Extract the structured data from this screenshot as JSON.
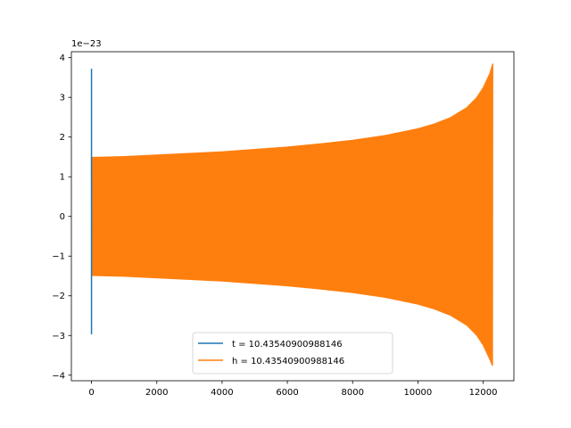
{
  "chart_data": {
    "type": "line",
    "title": "",
    "xlabel": "",
    "ylabel": "",
    "y_offset_label": "1e−23",
    "xlim": [
      -617,
      12942
    ],
    "ylim": [
      -4.14,
      4.15
    ],
    "xticks": [
      0,
      2000,
      4000,
      6000,
      8000,
      10000,
      12000
    ],
    "xtick_labels": [
      "0",
      "2000",
      "4000",
      "6000",
      "8000",
      "10000",
      "12000"
    ],
    "yticks": [
      -4,
      -3,
      -2,
      -1,
      0,
      1,
      2,
      3,
      4
    ],
    "ytick_labels": [
      "−4",
      "−3",
      "−2",
      "−1",
      "0",
      "1",
      "2",
      "3",
      "4"
    ],
    "grid": false,
    "legend_position": "lower center",
    "series": [
      {
        "name": "t = 10.43540900988146",
        "color": "#1f77b4",
        "description_points": {
          "x": [
            0,
            0,
            0,
            0,
            0
          ],
          "y": [
            3.72,
            -2.97,
            1.5,
            -1.5,
            -0.35
          ]
        }
      },
      {
        "name": "h = 10.43540900988146",
        "color": "#ff7f0e",
        "envelope": {
          "x": [
            0,
            1000,
            2000,
            3000,
            4000,
            5000,
            6000,
            7000,
            8000,
            9000,
            10000,
            10500,
            11000,
            11500,
            11800,
            12000,
            12200,
            12290
          ],
          "upper": [
            1.5,
            1.52,
            1.56,
            1.6,
            1.64,
            1.7,
            1.76,
            1.84,
            1.93,
            2.05,
            2.22,
            2.34,
            2.5,
            2.75,
            3.0,
            3.25,
            3.6,
            3.85
          ],
          "lower": [
            -1.5,
            -1.52,
            -1.56,
            -1.6,
            -1.64,
            -1.7,
            -1.76,
            -1.84,
            -1.93,
            -2.05,
            -2.22,
            -2.34,
            -2.5,
            -2.75,
            -3.0,
            -3.25,
            -3.6,
            -3.78
          ]
        }
      }
    ]
  }
}
